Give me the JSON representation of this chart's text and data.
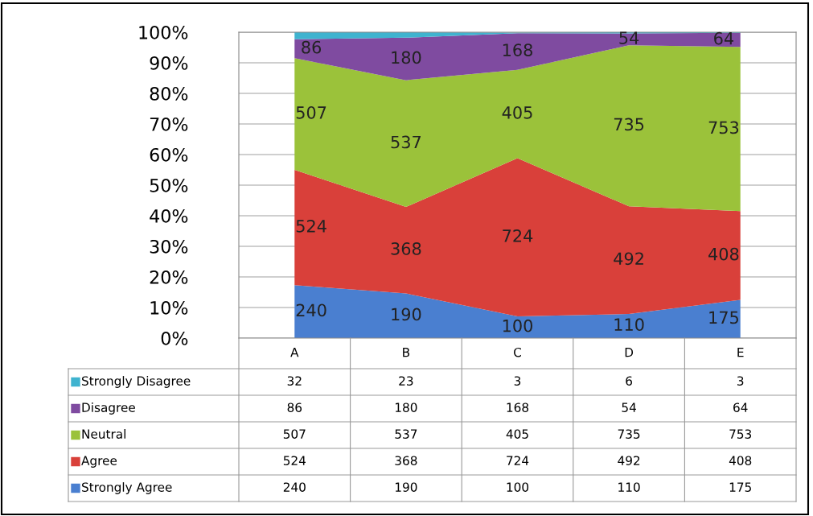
{
  "chart_data": {
    "type": "area",
    "stacked": true,
    "categories": [
      "A",
      "B",
      "C",
      "D",
      "E"
    ],
    "ylim": [
      0,
      100
    ],
    "yticks": [
      {
        "value": 0,
        "label": "0%"
      },
      {
        "value": 10,
        "label": "10%"
      },
      {
        "value": 20,
        "label": "20%"
      },
      {
        "value": 30,
        "label": "30%"
      },
      {
        "value": 40,
        "label": "40%"
      },
      {
        "value": 50,
        "label": "50%"
      },
      {
        "value": 60,
        "label": "60%"
      },
      {
        "value": 70,
        "label": "70%"
      },
      {
        "value": 80,
        "label": "80%"
      },
      {
        "value": 90,
        "label": "90%"
      },
      {
        "value": 100,
        "label": "100%"
      }
    ],
    "grid": "y",
    "legend": "bottom",
    "series": [
      {
        "name": "Strongly Agree",
        "color": "#4a7fd0",
        "values": [
          17.3,
          14.6,
          7.1,
          7.9,
          12.5
        ]
      },
      {
        "name": "Agree",
        "color": "#d9403a",
        "values": [
          37.7,
          28.3,
          51.7,
          35.2,
          29.0
        ]
      },
      {
        "name": "Neutral",
        "color": "#9bc23a",
        "values": [
          36.5,
          41.4,
          28.9,
          52.6,
          53.7
        ]
      },
      {
        "name": "Disagree",
        "color": "#7f4ba0",
        "values": [
          6.2,
          13.9,
          12.0,
          3.9,
          4.6
        ]
      },
      {
        "name": "Strongly Disagree",
        "color": "#3fb3cf",
        "values": [
          2.3,
          1.8,
          0.2,
          0.4,
          0.2
        ]
      }
    ],
    "annotations": [
      "240",
      "190",
      "100",
      "110",
      "175",
      "524",
      "368",
      "724",
      "492",
      "408",
      "507",
      "537",
      "405",
      "735",
      "753",
      "86",
      "180",
      "168",
      "54",
      "64",
      "32",
      "23",
      "3",
      "6",
      "3",
      "86",
      "180",
      "168",
      "54",
      "64",
      "507",
      "537",
      "405",
      "735",
      "753",
      "524",
      "368",
      "724",
      "492",
      "408",
      "240",
      "190",
      "100",
      "110",
      "175"
    ]
  }
}
